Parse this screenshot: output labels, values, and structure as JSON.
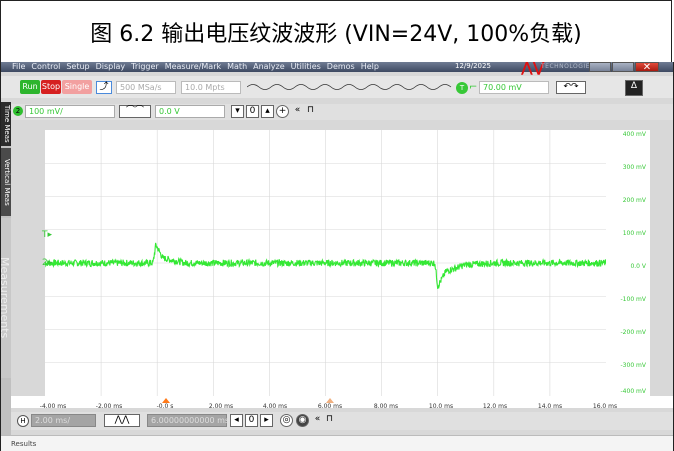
{
  "caption": "图 6.2 输出电压纹波波形 (VIN=24V, 100%负载)",
  "menu": [
    "File",
    "Control",
    "Setup",
    "Display",
    "Trigger",
    "Measure/Mark",
    "Math",
    "Analyze",
    "Utilities",
    "Demos",
    "Help"
  ],
  "date": "12/9/2025",
  "vendor_text": "TECHNOLOGIES",
  "run_label": "Run",
  "stop_label": "Stop",
  "single_label": "Single",
  "sample_rate": "500 MSa/s",
  "memory_depth": "10.0 Mpts",
  "trigger_level": "70.00 mV",
  "ch2_scale": "100 mV/",
  "ch2_offset": "0.0 V",
  "tabs": [
    "Time Meas",
    "Vertical Meas",
    "Measurements"
  ],
  "y_labels": [
    "400 mV",
    "300 mV",
    "200 mV",
    "100 mV",
    "0.0 V",
    "-100 mV",
    "-200 mV",
    "-300 mV",
    "-400 mV"
  ],
  "x_labels": [
    "-4.00 ms",
    "-2.00 ms",
    "-0.0 s",
    "2.00 ms",
    "4.00 ms",
    "6.00 ms",
    "8.00 ms",
    "10.0 ms",
    "12.0 ms",
    "14.0 ms",
    "16.0 ms"
  ],
  "h_scale": "2.00 ms/",
  "h_position": "6.00000000000 ms",
  "results_label": "Results",
  "colors": {
    "trace": "#34e834",
    "menubar": "#4a5670",
    "stop": "#d62020",
    "run": "#2db52d"
  },
  "chart_data": {
    "type": "line",
    "x_range_ms": [
      -4,
      16
    ],
    "y_range_mV": [
      -400,
      400
    ],
    "grid": true,
    "series": [
      {
        "points_ms_mV": [
          [
            -4,
            0
          ],
          [
            -0.15,
            0
          ],
          [
            -0.05,
            55
          ],
          [
            0.2,
            15
          ],
          [
            1,
            0
          ],
          [
            9.9,
            0
          ],
          [
            10.0,
            -70
          ],
          [
            10.3,
            -25
          ],
          [
            11,
            -5
          ],
          [
            12,
            0
          ],
          [
            16,
            0
          ]
        ],
        "ripple_mV_pp": 20
      }
    ]
  }
}
